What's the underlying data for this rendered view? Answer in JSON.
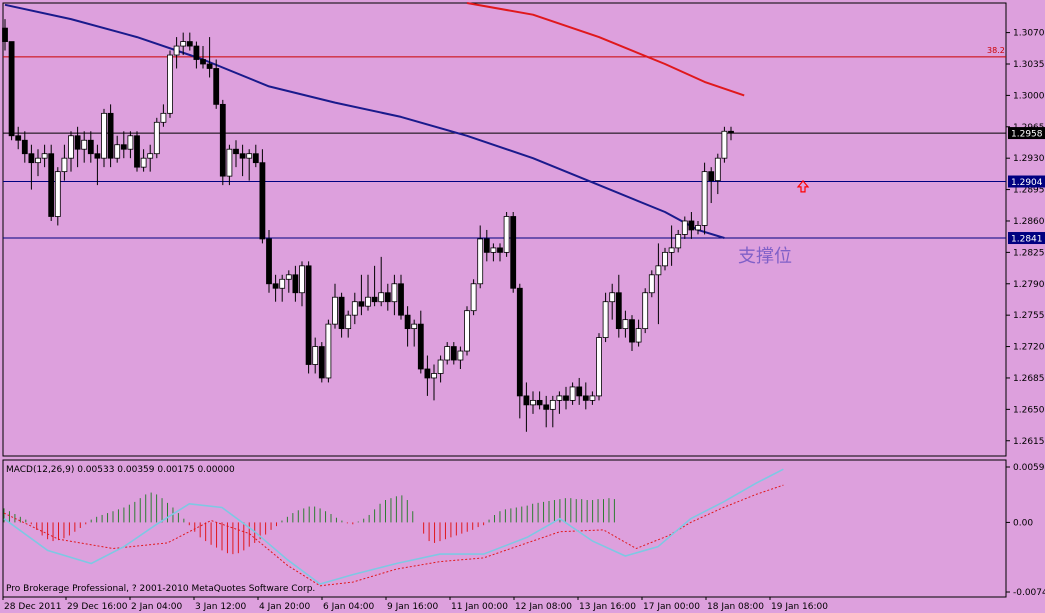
{
  "chart_data": {
    "type": "candlestick",
    "y_ticks": [
      "1.3070",
      "1.3035",
      "1.3000",
      "1.2965",
      "1.2930",
      "1.2895",
      "1.2860",
      "1.2825",
      "1.2790",
      "1.2755",
      "1.2720",
      "1.2685",
      "1.2650",
      "1.2615"
    ],
    "price_range": [
      1.2598,
      1.3103
    ],
    "price_tags": [
      {
        "label": "1.2958",
        "value": 1.2958,
        "line_color": "#000000",
        "tag_bg": "#000000"
      },
      {
        "label": "1.2904",
        "value": 1.2904,
        "line_color": "#000080",
        "tag_bg": "#000080"
      },
      {
        "label": "1.2841",
        "value": 1.2841,
        "line_color": "#000080",
        "tag_bg": "#000080"
      }
    ],
    "fibo": {
      "label": "38.2",
      "value": 1.3043,
      "color": "#cc0000"
    },
    "annotation": {
      "text": "支撑位",
      "at_price": 1.2823,
      "color": "#8060c8"
    },
    "arrow": {
      "at_price": 1.2898,
      "color": "#ff0000"
    },
    "x_labels": [
      "28 Dec 2011",
      "29 Dec 16:00",
      "2 Jan 04:00",
      "3 Jan 12:00",
      "4 Jan 20:00",
      "6 Jan 04:00",
      "9 Jan 16:00",
      "11 Jan 00:00",
      "12 Jan 08:00",
      "13 Jan 16:00",
      "17 Jan 00:00",
      "18 Jan 08:00",
      "19 Jan 16:00"
    ],
    "candles": [
      {
        "o": 1.3075,
        "h": 1.3085,
        "l": 1.305,
        "c": 1.306
      },
      {
        "o": 1.306,
        "h": 1.306,
        "l": 1.295,
        "c": 1.2955
      },
      {
        "o": 1.2955,
        "h": 1.2965,
        "l": 1.294,
        "c": 1.295
      },
      {
        "o": 1.295,
        "h": 1.296,
        "l": 1.2925,
        "c": 1.2935
      },
      {
        "o": 1.2935,
        "h": 1.2945,
        "l": 1.2895,
        "c": 1.2925
      },
      {
        "o": 1.2925,
        "h": 1.294,
        "l": 1.291,
        "c": 1.293
      },
      {
        "o": 1.293,
        "h": 1.2945,
        "l": 1.292,
        "c": 1.2935
      },
      {
        "o": 1.2935,
        "h": 1.2945,
        "l": 1.286,
        "c": 1.2865
      },
      {
        "o": 1.2865,
        "h": 1.292,
        "l": 1.2855,
        "c": 1.2915
      },
      {
        "o": 1.2915,
        "h": 1.2945,
        "l": 1.2905,
        "c": 1.293
      },
      {
        "o": 1.293,
        "h": 1.296,
        "l": 1.2915,
        "c": 1.2955
      },
      {
        "o": 1.2955,
        "h": 1.2965,
        "l": 1.292,
        "c": 1.294
      },
      {
        "o": 1.294,
        "h": 1.296,
        "l": 1.2925,
        "c": 1.295
      },
      {
        "o": 1.295,
        "h": 1.296,
        "l": 1.2925,
        "c": 1.2935
      },
      {
        "o": 1.2935,
        "h": 1.2945,
        "l": 1.29,
        "c": 1.293
      },
      {
        "o": 1.293,
        "h": 1.2985,
        "l": 1.292,
        "c": 1.298
      },
      {
        "o": 1.298,
        "h": 1.299,
        "l": 1.292,
        "c": 1.293
      },
      {
        "o": 1.293,
        "h": 1.2955,
        "l": 1.2925,
        "c": 1.2945
      },
      {
        "o": 1.2945,
        "h": 1.296,
        "l": 1.293,
        "c": 1.294
      },
      {
        "o": 1.294,
        "h": 1.296,
        "l": 1.293,
        "c": 1.2955
      },
      {
        "o": 1.2955,
        "h": 1.296,
        "l": 1.2915,
        "c": 1.292
      },
      {
        "o": 1.292,
        "h": 1.294,
        "l": 1.2915,
        "c": 1.293
      },
      {
        "o": 1.293,
        "h": 1.2945,
        "l": 1.2915,
        "c": 1.2935
      },
      {
        "o": 1.2935,
        "h": 1.2975,
        "l": 1.293,
        "c": 1.297
      },
      {
        "o": 1.297,
        "h": 1.299,
        "l": 1.2965,
        "c": 1.298
      },
      {
        "o": 1.298,
        "h": 1.305,
        "l": 1.2975,
        "c": 1.3045
      },
      {
        "o": 1.3045,
        "h": 1.3065,
        "l": 1.303,
        "c": 1.3055
      },
      {
        "o": 1.3055,
        "h": 1.307,
        "l": 1.3045,
        "c": 1.306
      },
      {
        "o": 1.306,
        "h": 1.307,
        "l": 1.305,
        "c": 1.3055
      },
      {
        "o": 1.3055,
        "h": 1.306,
        "l": 1.303,
        "c": 1.304
      },
      {
        "o": 1.304,
        "h": 1.3055,
        "l": 1.303,
        "c": 1.3035
      },
      {
        "o": 1.3035,
        "h": 1.3065,
        "l": 1.302,
        "c": 1.303
      },
      {
        "o": 1.303,
        "h": 1.304,
        "l": 1.2985,
        "c": 1.299
      },
      {
        "o": 1.299,
        "h": 1.2995,
        "l": 1.29,
        "c": 1.291
      },
      {
        "o": 1.291,
        "h": 1.2945,
        "l": 1.29,
        "c": 1.294
      },
      {
        "o": 1.294,
        "h": 1.295,
        "l": 1.292,
        "c": 1.2935
      },
      {
        "o": 1.2935,
        "h": 1.2945,
        "l": 1.291,
        "c": 1.293
      },
      {
        "o": 1.293,
        "h": 1.294,
        "l": 1.2905,
        "c": 1.2935
      },
      {
        "o": 1.2935,
        "h": 1.2945,
        "l": 1.292,
        "c": 1.2925
      },
      {
        "o": 1.2925,
        "h": 1.294,
        "l": 1.2835,
        "c": 1.284
      },
      {
        "o": 1.284,
        "h": 1.285,
        "l": 1.278,
        "c": 1.279
      },
      {
        "o": 1.279,
        "h": 1.28,
        "l": 1.277,
        "c": 1.2785
      },
      {
        "o": 1.2785,
        "h": 1.28,
        "l": 1.277,
        "c": 1.2795
      },
      {
        "o": 1.2795,
        "h": 1.2805,
        "l": 1.278,
        "c": 1.28
      },
      {
        "o": 1.28,
        "h": 1.281,
        "l": 1.277,
        "c": 1.278
      },
      {
        "o": 1.278,
        "h": 1.2815,
        "l": 1.2765,
        "c": 1.281
      },
      {
        "o": 1.281,
        "h": 1.2815,
        "l": 1.269,
        "c": 1.27
      },
      {
        "o": 1.27,
        "h": 1.273,
        "l": 1.269,
        "c": 1.272
      },
      {
        "o": 1.272,
        "h": 1.2725,
        "l": 1.268,
        "c": 1.2685
      },
      {
        "o": 1.2685,
        "h": 1.275,
        "l": 1.268,
        "c": 1.2745
      },
      {
        "o": 1.2745,
        "h": 1.279,
        "l": 1.274,
        "c": 1.2775
      },
      {
        "o": 1.2775,
        "h": 1.278,
        "l": 1.273,
        "c": 1.274
      },
      {
        "o": 1.274,
        "h": 1.276,
        "l": 1.273,
        "c": 1.2755
      },
      {
        "o": 1.2755,
        "h": 1.278,
        "l": 1.2745,
        "c": 1.277
      },
      {
        "o": 1.277,
        "h": 1.28,
        "l": 1.2755,
        "c": 1.2765
      },
      {
        "o": 1.2765,
        "h": 1.28,
        "l": 1.276,
        "c": 1.2775
      },
      {
        "o": 1.2775,
        "h": 1.281,
        "l": 1.2765,
        "c": 1.277
      },
      {
        "o": 1.277,
        "h": 1.282,
        "l": 1.2765,
        "c": 1.278
      },
      {
        "o": 1.278,
        "h": 1.279,
        "l": 1.276,
        "c": 1.277
      },
      {
        "o": 1.277,
        "h": 1.28,
        "l": 1.2755,
        "c": 1.279
      },
      {
        "o": 1.279,
        "h": 1.28,
        "l": 1.275,
        "c": 1.2755
      },
      {
        "o": 1.2755,
        "h": 1.2765,
        "l": 1.272,
        "c": 1.274
      },
      {
        "o": 1.274,
        "h": 1.275,
        "l": 1.272,
        "c": 1.2745
      },
      {
        "o": 1.2745,
        "h": 1.276,
        "l": 1.269,
        "c": 1.2695
      },
      {
        "o": 1.2695,
        "h": 1.271,
        "l": 1.2665,
        "c": 1.2685
      },
      {
        "o": 1.2685,
        "h": 1.27,
        "l": 1.266,
        "c": 1.269
      },
      {
        "o": 1.269,
        "h": 1.271,
        "l": 1.268,
        "c": 1.2705
      },
      {
        "o": 1.2705,
        "h": 1.2725,
        "l": 1.27,
        "c": 1.272
      },
      {
        "o": 1.272,
        "h": 1.2725,
        "l": 1.27,
        "c": 1.2705
      },
      {
        "o": 1.2705,
        "h": 1.272,
        "l": 1.2695,
        "c": 1.2715
      },
      {
        "o": 1.2715,
        "h": 1.2765,
        "l": 1.271,
        "c": 1.276
      },
      {
        "o": 1.276,
        "h": 1.2795,
        "l": 1.2755,
        "c": 1.279
      },
      {
        "o": 1.279,
        "h": 1.2855,
        "l": 1.2785,
        "c": 1.284
      },
      {
        "o": 1.284,
        "h": 1.285,
        "l": 1.2815,
        "c": 1.2825
      },
      {
        "o": 1.2825,
        "h": 1.2835,
        "l": 1.2815,
        "c": 1.283
      },
      {
        "o": 1.283,
        "h": 1.2835,
        "l": 1.2815,
        "c": 1.2825
      },
      {
        "o": 1.2825,
        "h": 1.287,
        "l": 1.282,
        "c": 1.2865
      },
      {
        "o": 1.2865,
        "h": 1.287,
        "l": 1.278,
        "c": 1.2785
      },
      {
        "o": 1.2785,
        "h": 1.279,
        "l": 1.264,
        "c": 1.2665
      },
      {
        "o": 1.2665,
        "h": 1.268,
        "l": 1.2625,
        "c": 1.2655
      },
      {
        "o": 1.2655,
        "h": 1.267,
        "l": 1.2645,
        "c": 1.266
      },
      {
        "o": 1.266,
        "h": 1.267,
        "l": 1.265,
        "c": 1.2655
      },
      {
        "o": 1.2655,
        "h": 1.2665,
        "l": 1.263,
        "c": 1.265
      },
      {
        "o": 1.265,
        "h": 1.2665,
        "l": 1.263,
        "c": 1.266
      },
      {
        "o": 1.266,
        "h": 1.267,
        "l": 1.2645,
        "c": 1.2665
      },
      {
        "o": 1.2665,
        "h": 1.2675,
        "l": 1.265,
        "c": 1.266
      },
      {
        "o": 1.266,
        "h": 1.268,
        "l": 1.2655,
        "c": 1.2675
      },
      {
        "o": 1.2675,
        "h": 1.2685,
        "l": 1.2655,
        "c": 1.2665
      },
      {
        "o": 1.2665,
        "h": 1.268,
        "l": 1.265,
        "c": 1.266
      },
      {
        "o": 1.266,
        "h": 1.267,
        "l": 1.2655,
        "c": 1.2665
      },
      {
        "o": 1.2665,
        "h": 1.2735,
        "l": 1.266,
        "c": 1.273
      },
      {
        "o": 1.273,
        "h": 1.278,
        "l": 1.2725,
        "c": 1.277
      },
      {
        "o": 1.277,
        "h": 1.279,
        "l": 1.275,
        "c": 1.278
      },
      {
        "o": 1.278,
        "h": 1.28,
        "l": 1.273,
        "c": 1.274
      },
      {
        "o": 1.274,
        "h": 1.276,
        "l": 1.273,
        "c": 1.275
      },
      {
        "o": 1.275,
        "h": 1.2755,
        "l": 1.2715,
        "c": 1.2725
      },
      {
        "o": 1.2725,
        "h": 1.275,
        "l": 1.272,
        "c": 1.274
      },
      {
        "o": 1.274,
        "h": 1.2785,
        "l": 1.2735,
        "c": 1.278
      },
      {
        "o": 1.278,
        "h": 1.2805,
        "l": 1.2775,
        "c": 1.28
      },
      {
        "o": 1.28,
        "h": 1.2835,
        "l": 1.2745,
        "c": 1.281
      },
      {
        "o": 1.281,
        "h": 1.283,
        "l": 1.2805,
        "c": 1.2825
      },
      {
        "o": 1.2825,
        "h": 1.2855,
        "l": 1.281,
        "c": 1.283
      },
      {
        "o": 1.283,
        "h": 1.285,
        "l": 1.2825,
        "c": 1.2845
      },
      {
        "o": 1.2845,
        "h": 1.2865,
        "l": 1.284,
        "c": 1.286
      },
      {
        "o": 1.286,
        "h": 1.287,
        "l": 1.284,
        "c": 1.285
      },
      {
        "o": 1.285,
        "h": 1.286,
        "l": 1.2845,
        "c": 1.2855
      },
      {
        "o": 1.2855,
        "h": 1.2925,
        "l": 1.2845,
        "c": 1.2915
      },
      {
        "o": 1.2915,
        "h": 1.292,
        "l": 1.288,
        "c": 1.2905
      },
      {
        "o": 1.2905,
        "h": 1.2935,
        "l": 1.289,
        "c": 1.293
      },
      {
        "o": 1.293,
        "h": 1.2965,
        "l": 1.2925,
        "c": 1.296
      },
      {
        "o": 1.296,
        "h": 1.2965,
        "l": 1.295,
        "c": 1.2958
      }
    ],
    "ma_blue": [
      [
        0,
        1.3101
      ],
      [
        10,
        1.3085
      ],
      [
        20,
        1.3065
      ],
      [
        30,
        1.304
      ],
      [
        40,
        1.301
      ],
      [
        50,
        1.2992
      ],
      [
        60,
        1.2976
      ],
      [
        70,
        1.2955
      ],
      [
        80,
        1.293
      ],
      [
        90,
        1.29
      ],
      [
        100,
        1.287
      ],
      [
        105,
        1.285
      ],
      [
        109,
        1.2841
      ]
    ],
    "ma_red": [
      [
        70,
        1.3103
      ],
      [
        80,
        1.309
      ],
      [
        90,
        1.3065
      ],
      [
        100,
        1.3035
      ],
      [
        106,
        1.3015
      ],
      [
        112,
        1.3
      ]
    ],
    "macd": {
      "label": "MACD(12,26,9) 0.00533 0.00359 0.00175 0.00000",
      "ticks": [
        "0.00594",
        "0.00",
        "-0.00746"
      ],
      "range": [
        -0.00746,
        0.00594
      ],
      "hist": [
        0.0015,
        0.0012,
        0.0009,
        0.0006,
        0.0003,
        -0.0002,
        -0.0008,
        -0.0014,
        -0.0018,
        -0.002,
        -0.0019,
        -0.0017,
        -0.0014,
        -0.001,
        -0.0006,
        -0.0002,
        0.0003,
        0.0006,
        0.0008,
        0.001,
        0.0012,
        0.0014,
        0.0016,
        0.0019,
        0.0022,
        0.0026,
        0.003,
        0.0032,
        0.003,
        0.0026,
        0.0021,
        0.0016,
        0.001,
        0.0004,
        -0.0003,
        -0.001,
        -0.0016,
        -0.002,
        -0.0024,
        -0.0027,
        -0.003,
        -0.0033,
        -0.0034,
        -0.0033,
        -0.003,
        -0.0026,
        -0.0022,
        -0.0018,
        -0.0013,
        -0.0008,
        -0.0004,
        0.0002,
        0.0006,
        0.001,
        0.0013,
        0.0015,
        0.0017,
        0.0017,
        0.0015,
        0.0012,
        0.0009,
        0.0005,
        0.0002,
        -0.0001,
        -0.0002,
        0.0001,
        0.0004,
        0.0008,
        0.0014,
        0.002,
        0.0024,
        0.0026,
        0.0028,
        0.0029,
        0.0024,
        0.0012,
        0.0,
        -0.0012,
        -0.002,
        -0.0022,
        -0.002,
        -0.0018,
        -0.0016,
        -0.0014,
        -0.0012,
        -0.001,
        -0.0008,
        -0.0005,
        -0.0003,
        0.0003,
        0.0008,
        0.0012,
        0.0014,
        0.0015,
        0.0016,
        0.0017,
        0.0018,
        0.002,
        0.0021,
        0.0022,
        0.0023,
        0.0024,
        0.0025,
        0.0026,
        0.0026,
        0.0025,
        0.0025,
        0.0024,
        0.0024,
        0.0025,
        0.0025,
        0.0026,
        0.0025
      ],
      "signal": [
        [
          0,
          0.001
        ],
        [
          10,
          -0.0018
        ],
        [
          20,
          -0.0028
        ],
        [
          30,
          -0.0022
        ],
        [
          38,
          0.0002
        ],
        [
          45,
          -0.0012
        ],
        [
          52,
          -0.0046
        ],
        [
          58,
          -0.0068
        ],
        [
          64,
          -0.0064
        ],
        [
          72,
          -0.005
        ],
        [
          80,
          -0.0042
        ],
        [
          88,
          -0.0038
        ],
        [
          96,
          -0.0022
        ],
        [
          102,
          -0.001
        ],
        [
          110,
          -0.0008
        ],
        [
          116,
          -0.0028
        ],
        [
          122,
          -0.0014
        ],
        [
          126,
          0.0
        ],
        [
          132,
          0.0016
        ],
        [
          138,
          0.003
        ],
        [
          143,
          0.004
        ]
      ],
      "line": [
        [
          0,
          0.0004
        ],
        [
          8,
          -0.003
        ],
        [
          16,
          -0.0044
        ],
        [
          22,
          -0.0026
        ],
        [
          28,
          -0.0002
        ],
        [
          34,
          0.002
        ],
        [
          40,
          0.0016
        ],
        [
          46,
          -0.001
        ],
        [
          52,
          -0.004
        ],
        [
          58,
          -0.0066
        ],
        [
          64,
          -0.0056
        ],
        [
          72,
          -0.0044
        ],
        [
          80,
          -0.0034
        ],
        [
          88,
          -0.0034
        ],
        [
          96,
          -0.0016
        ],
        [
          102,
          0.0004
        ],
        [
          108,
          -0.002
        ],
        [
          114,
          -0.0036
        ],
        [
          120,
          -0.0026
        ],
        [
          126,
          0.0004
        ],
        [
          132,
          0.0022
        ],
        [
          138,
          0.0042
        ],
        [
          143,
          0.0057
        ]
      ]
    },
    "copyright": "Pro Brokerage Professional, ? 2001-2010 MetaQuotes Software Corp."
  }
}
